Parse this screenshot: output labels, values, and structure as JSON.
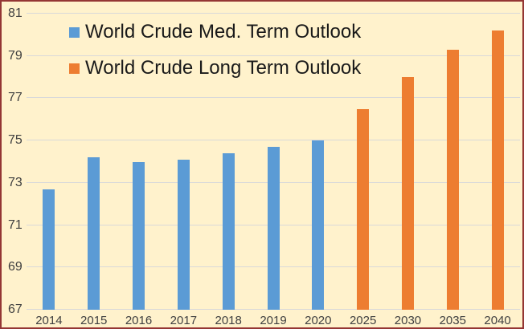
{
  "chart": {
    "background_color": "#FFF2CC",
    "border_color": "#943634",
    "gridline_color": "#D9D9D9",
    "axis_text_color": "#3F3F3F",
    "legend_text_color": "#1A1A1A",
    "legend_swatch_names": [
      "blue-legend-swatch",
      "orange-legend-swatch"
    ]
  },
  "chart_data": {
    "type": "bar",
    "categories": [
      "2014",
      "2015",
      "2016",
      "2017",
      "2018",
      "2019",
      "2020",
      "2025",
      "2030",
      "2035",
      "2040"
    ],
    "series": [
      {
        "name": "World Crude Med. Term Outlook",
        "color": "#5B9BD5",
        "values": [
          72.7,
          74.2,
          74.0,
          74.1,
          74.4,
          74.7,
          75.0,
          null,
          null,
          null,
          null
        ]
      },
      {
        "name": "World Crude Long Term Outlook",
        "color": "#ED7D31",
        "values": [
          null,
          null,
          null,
          null,
          null,
          null,
          null,
          76.5,
          78.0,
          79.3,
          80.2
        ]
      }
    ],
    "ylim": [
      67,
      81
    ],
    "yticks": [
      67,
      69,
      71,
      73,
      75,
      77,
      79,
      81
    ],
    "grid": true,
    "legend_position": "top-left"
  }
}
